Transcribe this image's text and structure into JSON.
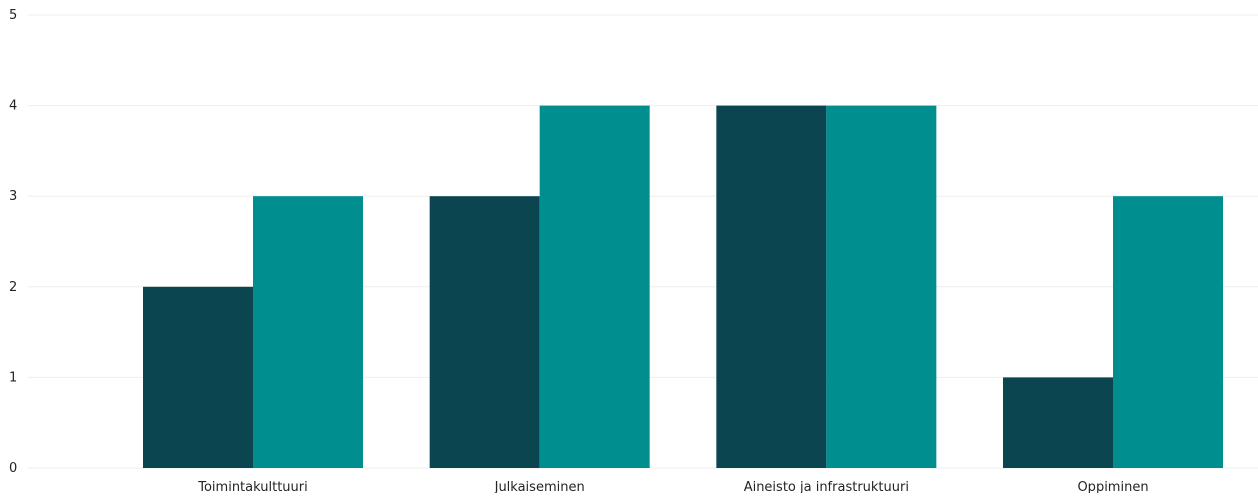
{
  "chart_data": {
    "type": "bar",
    "categories": [
      "Toimintakulttuuri",
      "Julkaiseminen",
      "Aineisto ja infrastruktuuri",
      "Oppiminen"
    ],
    "series": [
      {
        "values": [
          2,
          3,
          4,
          1
        ],
        "color": "#0b4650"
      },
      {
        "values": [
          3,
          4,
          4,
          3
        ],
        "color": "#008e8f"
      }
    ],
    "yticks": [
      0,
      1,
      2,
      3,
      4,
      5
    ],
    "ylim": [
      0,
      5
    ],
    "grid": true,
    "gridColor": "#eeeeee",
    "title": "",
    "xlabel": "",
    "ylabel": ""
  }
}
